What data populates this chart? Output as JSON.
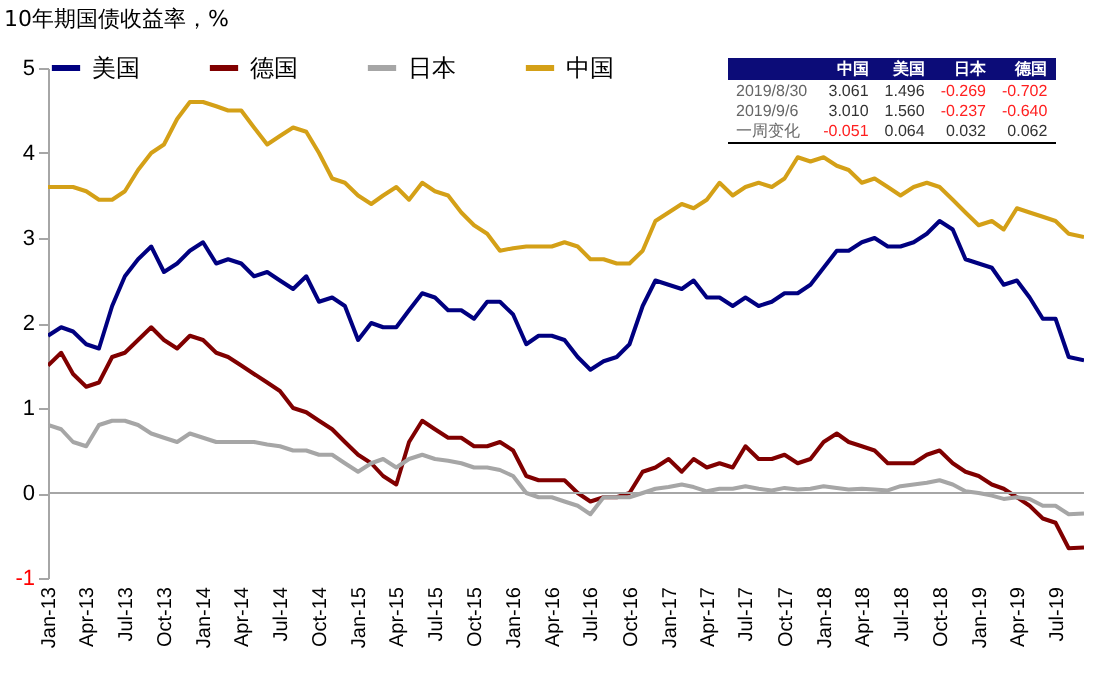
{
  "chart_data": {
    "type": "line",
    "title": "10年期国债收益率，%",
    "x": [
      "2013-01",
      "2013-02",
      "2013-03",
      "2013-04",
      "2013-05",
      "2013-06",
      "2013-07",
      "2013-08",
      "2013-09",
      "2013-10",
      "2013-11",
      "2013-12",
      "2014-01",
      "2014-02",
      "2014-03",
      "2014-04",
      "2014-05",
      "2014-06",
      "2014-07",
      "2014-08",
      "2014-09",
      "2014-10",
      "2014-11",
      "2014-12",
      "2015-01",
      "2015-02",
      "2015-03",
      "2015-04",
      "2015-05",
      "2015-06",
      "2015-07",
      "2015-08",
      "2015-09",
      "2015-10",
      "2015-11",
      "2015-12",
      "2016-01",
      "2016-02",
      "2016-03",
      "2016-04",
      "2016-05",
      "2016-06",
      "2016-07",
      "2016-08",
      "2016-09",
      "2016-10",
      "2016-11",
      "2016-12",
      "2017-01",
      "2017-02",
      "2017-03",
      "2017-04",
      "2017-05",
      "2017-06",
      "2017-07",
      "2017-08",
      "2017-09",
      "2017-10",
      "2017-11",
      "2017-12",
      "2018-01",
      "2018-02",
      "2018-03",
      "2018-04",
      "2018-05",
      "2018-06",
      "2018-07",
      "2018-08",
      "2018-09",
      "2018-10",
      "2018-11",
      "2018-12",
      "2019-01",
      "2019-02",
      "2019-03",
      "2019-04",
      "2019-05",
      "2019-06",
      "2019-07",
      "2019-08",
      "2019-09-06"
    ],
    "series": [
      {
        "name": "美国",
        "color": "#000080",
        "values": [
          1.85,
          1.95,
          1.9,
          1.75,
          1.7,
          2.2,
          2.55,
          2.75,
          2.9,
          2.6,
          2.7,
          2.85,
          2.95,
          2.7,
          2.75,
          2.7,
          2.55,
          2.6,
          2.5,
          2.4,
          2.55,
          2.25,
          2.3,
          2.2,
          1.8,
          2.0,
          1.95,
          1.95,
          2.15,
          2.35,
          2.3,
          2.15,
          2.15,
          2.05,
          2.25,
          2.25,
          2.1,
          1.75,
          1.85,
          1.85,
          1.8,
          1.6,
          1.45,
          1.55,
          1.6,
          1.75,
          2.2,
          2.5,
          2.45,
          2.4,
          2.5,
          2.3,
          2.3,
          2.2,
          2.3,
          2.2,
          2.25,
          2.35,
          2.35,
          2.45,
          2.65,
          2.85,
          2.85,
          2.95,
          3.0,
          2.9,
          2.9,
          2.95,
          3.05,
          3.2,
          3.1,
          2.75,
          2.7,
          2.65,
          2.45,
          2.5,
          2.3,
          2.05,
          2.05,
          1.6,
          1.56
        ]
      },
      {
        "name": "德国",
        "color": "#800000",
        "values": [
          1.5,
          1.65,
          1.4,
          1.25,
          1.3,
          1.6,
          1.65,
          1.8,
          1.95,
          1.8,
          1.7,
          1.85,
          1.8,
          1.65,
          1.6,
          1.5,
          1.4,
          1.3,
          1.2,
          1.0,
          0.95,
          0.85,
          0.75,
          0.6,
          0.45,
          0.35,
          0.2,
          0.1,
          0.6,
          0.85,
          0.75,
          0.65,
          0.65,
          0.55,
          0.55,
          0.6,
          0.5,
          0.2,
          0.15,
          0.15,
          0.15,
          0.0,
          -0.1,
          -0.05,
          -0.05,
          0.0,
          0.25,
          0.3,
          0.4,
          0.25,
          0.4,
          0.3,
          0.35,
          0.3,
          0.55,
          0.4,
          0.4,
          0.45,
          0.35,
          0.4,
          0.6,
          0.7,
          0.6,
          0.55,
          0.5,
          0.35,
          0.35,
          0.35,
          0.45,
          0.5,
          0.35,
          0.25,
          0.2,
          0.1,
          0.05,
          -0.05,
          -0.15,
          -0.3,
          -0.35,
          -0.65,
          -0.64
        ]
      },
      {
        "name": "日本",
        "color": "#a6a6a6",
        "values": [
          0.8,
          0.75,
          0.6,
          0.55,
          0.8,
          0.85,
          0.85,
          0.8,
          0.7,
          0.65,
          0.6,
          0.7,
          0.65,
          0.6,
          0.6,
          0.6,
          0.6,
          0.57,
          0.55,
          0.5,
          0.5,
          0.45,
          0.45,
          0.35,
          0.25,
          0.35,
          0.4,
          0.3,
          0.4,
          0.45,
          0.4,
          0.38,
          0.35,
          0.3,
          0.3,
          0.27,
          0.2,
          0.0,
          -0.05,
          -0.05,
          -0.1,
          -0.15,
          -0.25,
          -0.05,
          -0.05,
          -0.05,
          0.0,
          0.05,
          0.07,
          0.1,
          0.07,
          0.02,
          0.05,
          0.05,
          0.08,
          0.05,
          0.03,
          0.06,
          0.04,
          0.05,
          0.08,
          0.06,
          0.04,
          0.05,
          0.04,
          0.03,
          0.08,
          0.1,
          0.12,
          0.15,
          0.1,
          0.02,
          0.0,
          -0.03,
          -0.07,
          -0.05,
          -0.07,
          -0.15,
          -0.15,
          -0.25,
          -0.24
        ]
      },
      {
        "name": "中国",
        "color": "#d4a017",
        "values": [
          3.6,
          3.6,
          3.6,
          3.55,
          3.45,
          3.45,
          3.55,
          3.8,
          4.0,
          4.1,
          4.4,
          4.6,
          4.6,
          4.55,
          4.5,
          4.5,
          4.3,
          4.1,
          4.2,
          4.3,
          4.25,
          4.0,
          3.7,
          3.65,
          3.5,
          3.4,
          3.5,
          3.6,
          3.45,
          3.65,
          3.55,
          3.5,
          3.3,
          3.15,
          3.05,
          2.85,
          2.88,
          2.9,
          2.9,
          2.9,
          2.95,
          2.9,
          2.75,
          2.75,
          2.7,
          2.7,
          2.85,
          3.2,
          3.3,
          3.4,
          3.35,
          3.45,
          3.65,
          3.5,
          3.6,
          3.65,
          3.6,
          3.7,
          3.95,
          3.9,
          3.95,
          3.85,
          3.8,
          3.65,
          3.7,
          3.6,
          3.5,
          3.6,
          3.65,
          3.6,
          3.45,
          3.3,
          3.15,
          3.2,
          3.1,
          3.35,
          3.3,
          3.25,
          3.2,
          3.05,
          3.01
        ]
      }
    ],
    "xlim": [
      "2013-01",
      "2019-09-06"
    ],
    "xticks": [
      {
        "value": "2013-01",
        "label": "Jan-13"
      },
      {
        "value": "2013-04",
        "label": "Apr-13"
      },
      {
        "value": "2013-07",
        "label": "Jul-13"
      },
      {
        "value": "2013-10",
        "label": "Oct-13"
      },
      {
        "value": "2014-01",
        "label": "Jan-14"
      },
      {
        "value": "2014-04",
        "label": "Apr-14"
      },
      {
        "value": "2014-07",
        "label": "Jul-14"
      },
      {
        "value": "2014-10",
        "label": "Oct-14"
      },
      {
        "value": "2015-01",
        "label": "Jan-15"
      },
      {
        "value": "2015-04",
        "label": "Apr-15"
      },
      {
        "value": "2015-07",
        "label": "Jul-15"
      },
      {
        "value": "2015-10",
        "label": "Oct-15"
      },
      {
        "value": "2016-01",
        "label": "Jan-16"
      },
      {
        "value": "2016-04",
        "label": "Apr-16"
      },
      {
        "value": "2016-07",
        "label": "Jul-16"
      },
      {
        "value": "2016-10",
        "label": "Oct-16"
      },
      {
        "value": "2017-01",
        "label": "Jan-17"
      },
      {
        "value": "2017-04",
        "label": "Apr-17"
      },
      {
        "value": "2017-07",
        "label": "Jul-17"
      },
      {
        "value": "2017-10",
        "label": "Oct-17"
      },
      {
        "value": "2018-01",
        "label": "Jan-18"
      },
      {
        "value": "2018-04",
        "label": "Apr-18"
      },
      {
        "value": "2018-07",
        "label": "Jul-18"
      },
      {
        "value": "2018-10",
        "label": "Oct-18"
      },
      {
        "value": "2019-01",
        "label": "Jan-19"
      },
      {
        "value": "2019-04",
        "label": "Apr-19"
      },
      {
        "value": "2019-07",
        "label": "Jul-19"
      }
    ],
    "ylim": [
      -1,
      5
    ],
    "yticks": [
      -1,
      0,
      1,
      2,
      3,
      4,
      5
    ],
    "ref_lines": [
      {
        "axis": "y",
        "value": 0,
        "color": "#a6a6a6"
      }
    ],
    "legend": "top",
    "grid": false,
    "annotations": [
      "中国",
      "美国",
      "日本",
      "德国",
      "2019/8/30",
      "3.061",
      "1.496",
      "-0.269",
      "-0.702",
      "2019/9/6",
      "3.010",
      "1.560",
      "-0.237",
      "-0.640",
      "一周变化",
      "-0.051",
      "0.064",
      "0.032",
      "0.062"
    ]
  }
}
